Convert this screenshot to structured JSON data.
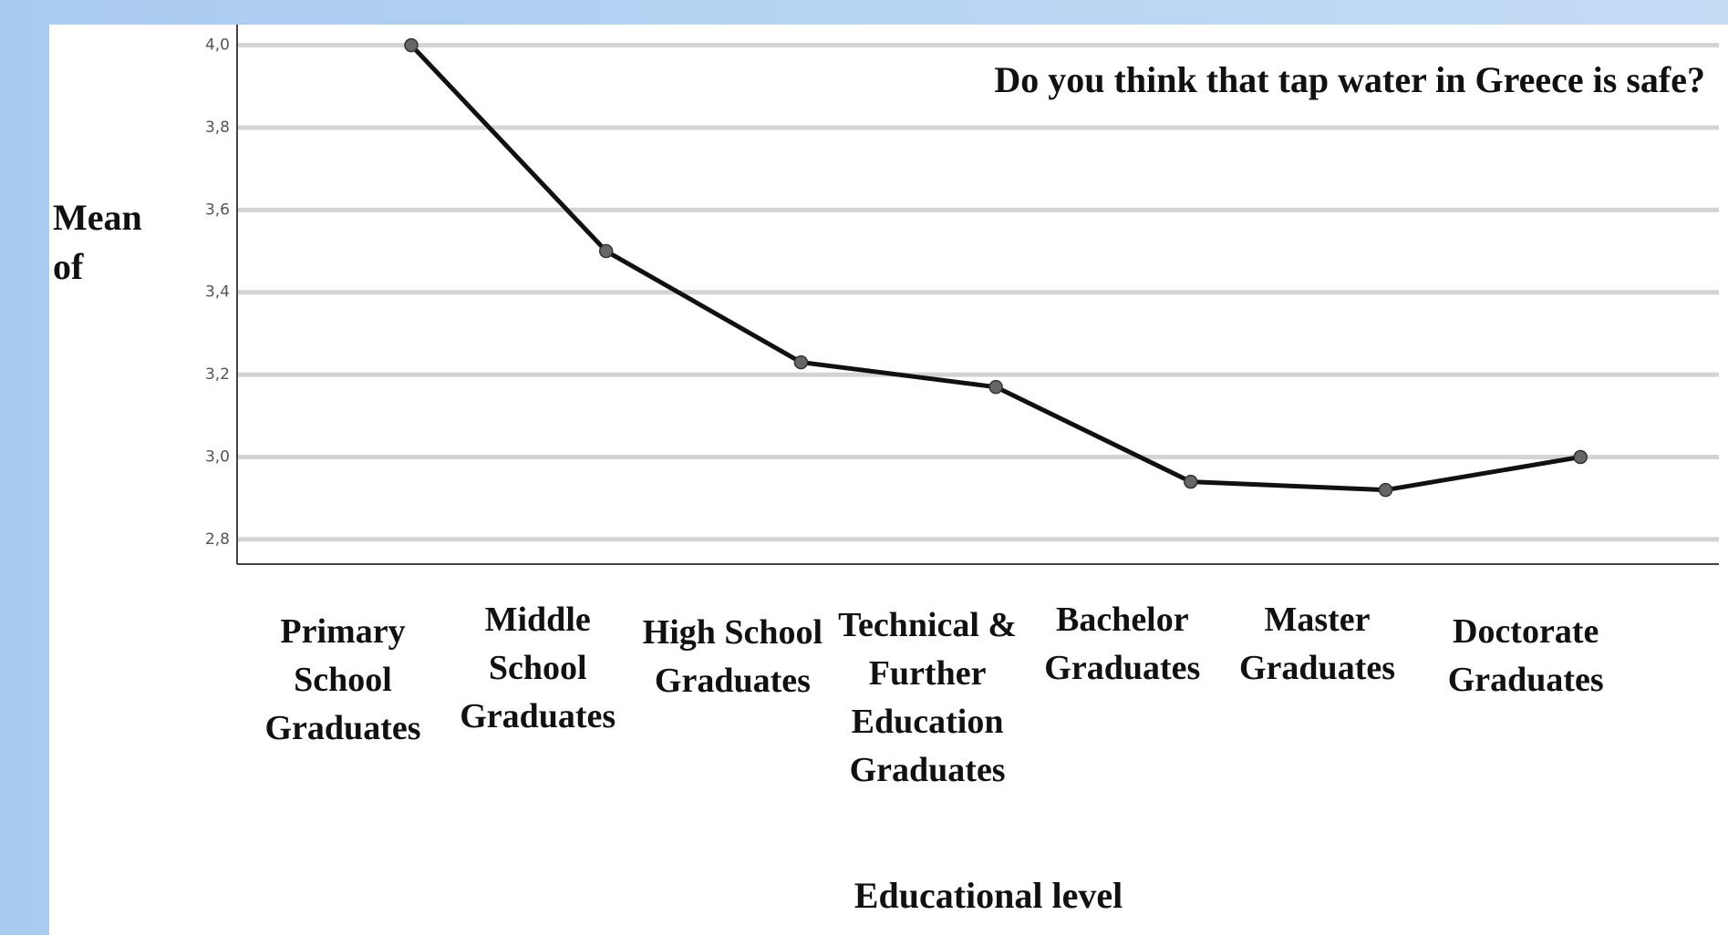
{
  "chart_data": {
    "type": "line",
    "title": "Do you think that tap water in Greece is safe?",
    "y_label": "Mean of",
    "x_label": "Educational level",
    "categories": [
      "Primary School Graduates",
      "Middle School Graduates",
      "High School Graduates",
      "Technical & Further Education Graduates",
      "Bachelor Graduates",
      "Master Graduates",
      "Doctorate Graduates"
    ],
    "series": [
      {
        "name": "Mean",
        "color": "#111111",
        "values": [
          4.0,
          3.5,
          3.23,
          3.17,
          2.94,
          2.92,
          3.0
        ]
      }
    ],
    "ylim": [
      2.74,
      4.05
    ],
    "yticks": [
      {
        "value": 2.8,
        "label": "2,8"
      },
      {
        "value": 3.0,
        "label": "3,0"
      },
      {
        "value": 3.2,
        "label": "3,2"
      },
      {
        "value": 3.4,
        "label": "3,4"
      },
      {
        "value": 3.6,
        "label": "3,6"
      },
      {
        "value": 3.8,
        "label": "3,8"
      },
      {
        "value": 4.0,
        "label": "4,0"
      }
    ],
    "grid": true
  }
}
